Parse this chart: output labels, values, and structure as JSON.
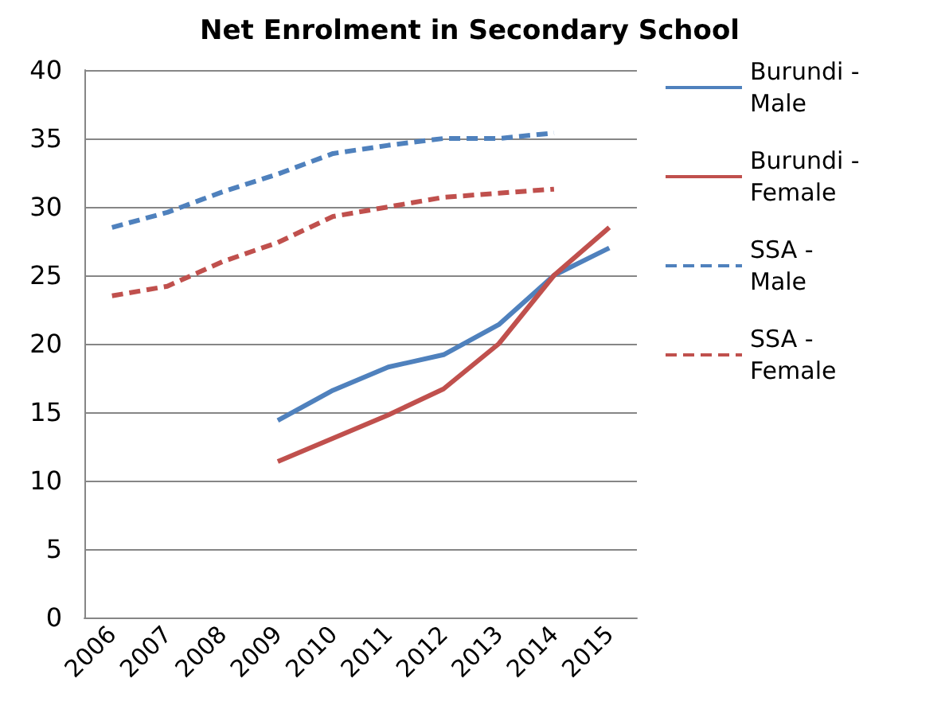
{
  "chart_data": {
    "type": "line",
    "title": "Net Enrolment in Secondary School",
    "categories": [
      "2006",
      "2007",
      "2008",
      "2009",
      "2010",
      "2011",
      "2012",
      "2013",
      "2014",
      "2015"
    ],
    "series": [
      {
        "name": "Burundi - Male",
        "color": "#4f81bd",
        "line_style": "solid",
        "values": [
          null,
          null,
          null,
          14.4,
          16.6,
          18.3,
          19.2,
          21.4,
          25.0,
          27.0
        ]
      },
      {
        "name": "Burundi - Female",
        "color": "#c0504d",
        "line_style": "solid",
        "values": [
          null,
          null,
          null,
          11.4,
          13.1,
          14.8,
          16.7,
          20.0,
          25.0,
          28.5
        ]
      },
      {
        "name": "SSA - Male",
        "color": "#4f81bd",
        "line_style": "dashed",
        "values": [
          28.5,
          29.6,
          31.1,
          32.4,
          33.9,
          34.5,
          35.0,
          35.0,
          35.4,
          null
        ]
      },
      {
        "name": "SSA - Female",
        "color": "#c0504d",
        "line_style": "dashed",
        "values": [
          23.5,
          24.2,
          26.0,
          27.4,
          29.3,
          30.0,
          30.7,
          31.0,
          31.3,
          null
        ]
      }
    ],
    "ylim": [
      0,
      40
    ],
    "yticks": [
      0,
      5,
      10,
      15,
      20,
      25,
      30,
      35,
      40
    ],
    "grid": "y",
    "legend": "right",
    "marker": "none"
  }
}
